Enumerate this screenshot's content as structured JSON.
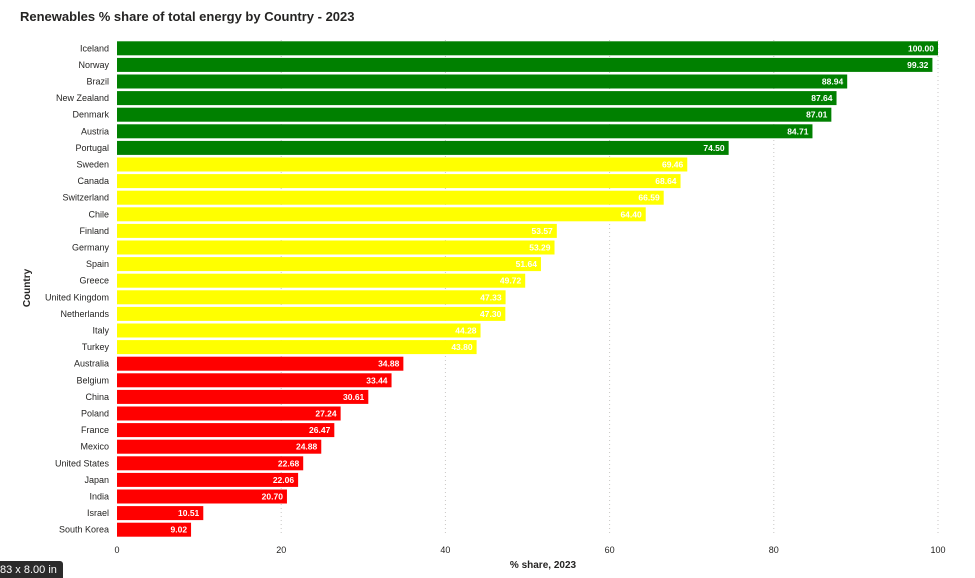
{
  "chart_data": {
    "type": "bar",
    "orientation": "horizontal",
    "title": "Renewables % share of total energy by Country - 2023",
    "xlabel": "% share, 2023",
    "ylabel": "Country",
    "xlim": [
      0,
      100
    ],
    "xticks": [
      "0",
      "20",
      "40",
      "60",
      "80",
      "100"
    ],
    "grid": true,
    "categories": [
      "Iceland",
      "Norway",
      "Brazil",
      "New Zealand",
      "Denmark",
      "Austria",
      "Portugal",
      "Sweden",
      "Canada",
      "Switzerland",
      "Chile",
      "Finland",
      "Germany",
      "Spain",
      "Greece",
      "United Kingdom",
      "Netherlands",
      "Italy",
      "Turkey",
      "Australia",
      "Belgium",
      "China",
      "Poland",
      "France",
      "Mexico",
      "United States",
      "Japan",
      "India",
      "Israel",
      "South Korea"
    ],
    "values": [
      100.0,
      99.32,
      88.94,
      87.64,
      87.01,
      84.71,
      74.5,
      69.46,
      68.64,
      66.59,
      64.4,
      53.57,
      53.29,
      51.64,
      49.72,
      47.33,
      47.3,
      44.28,
      43.8,
      34.88,
      33.44,
      30.61,
      27.24,
      26.47,
      24.88,
      22.68,
      22.06,
      20.7,
      10.51,
      9.02
    ],
    "data_labels": [
      "100.00",
      "99.32",
      "88.94",
      "87.64",
      "87.01",
      "84.71",
      "74.50",
      "69.46",
      "68.64",
      "66.59",
      "64.40",
      "53.57",
      "53.29",
      "51.64",
      "49.72",
      "47.33",
      "47.30",
      "44.28",
      "43.80",
      "34.88",
      "33.44",
      "30.61",
      "27.24",
      "26.47",
      "24.88",
      "22.68",
      "22.06",
      "20.70",
      "10.51",
      "9.02"
    ],
    "colors": {
      "high": "#008000",
      "mid": "#ffff00",
      "low": "#ff0000"
    },
    "color_groups": [
      "high",
      "high",
      "high",
      "high",
      "high",
      "high",
      "high",
      "mid",
      "mid",
      "mid",
      "mid",
      "mid",
      "mid",
      "mid",
      "mid",
      "mid",
      "mid",
      "mid",
      "mid",
      "low",
      "low",
      "low",
      "low",
      "low",
      "low",
      "low",
      "low",
      "low",
      "low",
      "low"
    ]
  },
  "page_size_badge": "83 x 8.00 in"
}
